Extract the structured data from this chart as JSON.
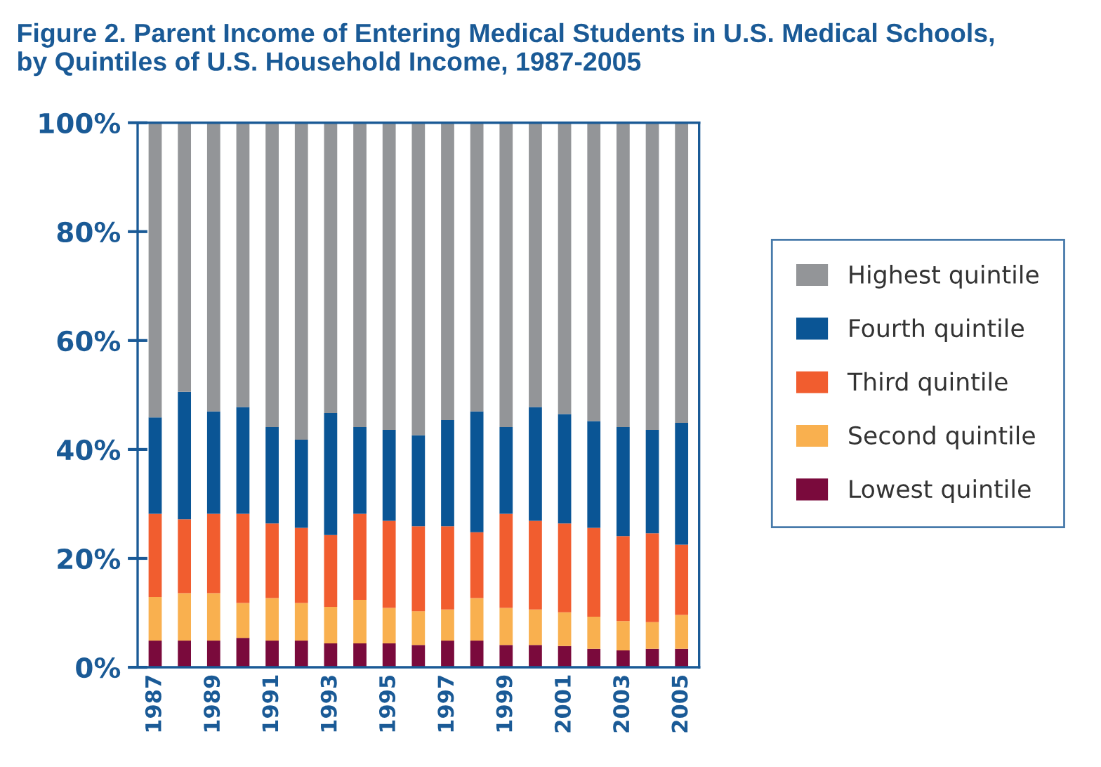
{
  "chart_data": {
    "type": "bar",
    "stacked": true,
    "title": "Figure 2. Parent Income of Entering Medical Students in U.S. Medical Schools,\nby Quintiles of U.S. Household Income, 1987-2005",
    "categories": [
      "1987",
      null,
      "1989",
      null,
      "1991",
      null,
      "1993",
      null,
      "1995",
      null,
      "1997",
      null,
      "1999",
      null,
      "2001",
      null,
      "2003",
      null,
      "2005"
    ],
    "series": [
      {
        "name": "Lowest quintile",
        "color": "#7a0a3c",
        "values": [
          4.9,
          4.9,
          4.9,
          5.4,
          4.9,
          4.9,
          4.4,
          4.4,
          4.4,
          4.1,
          4.9,
          4.9,
          4.1,
          4.1,
          3.9,
          3.4,
          3.1,
          3.4,
          3.4
        ]
      },
      {
        "name": "Second quintile",
        "color": "#f9b04f",
        "values": [
          8.0,
          8.7,
          8.7,
          6.4,
          7.8,
          6.9,
          6.7,
          8.0,
          6.5,
          6.2,
          5.7,
          7.8,
          6.8,
          6.5,
          6.2,
          5.9,
          5.4,
          4.9,
          6.2
        ]
      },
      {
        "name": "Third quintile",
        "color": "#f15d2f",
        "values": [
          15.3,
          13.6,
          14.6,
          16.4,
          13.7,
          13.8,
          13.2,
          15.8,
          16.0,
          15.6,
          15.3,
          12.1,
          17.3,
          16.3,
          16.3,
          16.3,
          15.6,
          16.3,
          12.9
        ]
      },
      {
        "name": "Fourth quintile",
        "color": "#0a5595",
        "values": [
          17.7,
          23.4,
          18.8,
          19.6,
          17.7,
          16.2,
          22.4,
          15.9,
          16.7,
          16.7,
          19.5,
          22.2,
          15.9,
          20.9,
          20.1,
          19.6,
          20.0,
          19.0,
          22.4
        ]
      },
      {
        "name": "Highest quintile",
        "color": "#939598",
        "values": [
          54.1,
          49.4,
          53.0,
          52.2,
          55.9,
          58.2,
          53.3,
          55.9,
          56.4,
          57.4,
          54.6,
          53.0,
          55.9,
          52.2,
          53.5,
          54.8,
          55.9,
          56.4,
          55.1
        ]
      }
    ],
    "ylim": [
      0,
      100
    ],
    "yticks": [
      {
        "value": 0,
        "label": "0%"
      },
      {
        "value": 20,
        "label": "20%"
      },
      {
        "value": 40,
        "label": "40%"
      },
      {
        "value": 60,
        "label": "60%"
      },
      {
        "value": 80,
        "label": "80%"
      },
      {
        "value": 100,
        "label": "100%"
      }
    ],
    "grid": false,
    "legend": "right"
  }
}
